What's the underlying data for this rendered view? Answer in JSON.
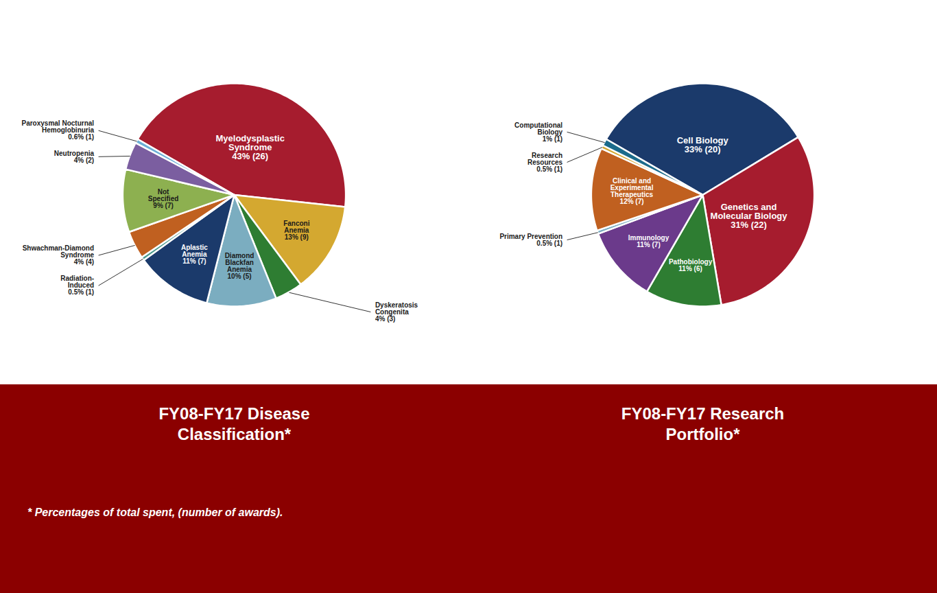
{
  "chart_data": [
    {
      "type": "pie",
      "title": "FY08-FY17 Disease\nClassification*",
      "categories": [
        "Myelodysplastic\nSyndrome\n43% (26)",
        "Fanconi\nAnemia\n13% (9)",
        "Dyskeratosis\nCongenita\n4% (3)",
        "Diamond\nBlackfan\nAnemia\n10% (5)",
        "Aplastic\nAnemia\n11% (7)",
        "Radiation-\nInduced\n0.5% (1)",
        "Shwachman-Diamond\nSyndrome\n4% (4)",
        "Not\nSpecified\n9% (7)",
        "Neutropenia\n4% (2)",
        "Paroxysmal Nocturnal\nHemoglobinuria\n0.6% (1)"
      ],
      "values": [
        43,
        13,
        4,
        10,
        11,
        0.5,
        4,
        9,
        4,
        0.6
      ],
      "colors": [
        "#A61C2E",
        "#D4A830",
        "#2E7D32",
        "#7BADC0",
        "#1B3A6B",
        "#4A9B8E",
        "#C06020",
        "#8DB050",
        "#7B5EA0",
        "#6BAED6"
      ]
    },
    {
      "type": "pie",
      "title": "FY08-FY17 Research\nPortfolio*",
      "categories": [
        "Cell Biology\n33% (20)",
        "Genetics and\nMolecular Biology\n31% (22)",
        "Pathobiology\n11% (6)",
        "Immunology\n11% (7)",
        "Primary Prevention\n0.5% (1)",
        "Clinical and\nExperimental\nTherapeutics\n12% (7)",
        "Research\nResources\n0.5% (1)",
        "Computational\nBiology\n1% (1)"
      ],
      "values": [
        33,
        31,
        11,
        11,
        0.5,
        12,
        0.5,
        1
      ],
      "colors": [
        "#1B3A6B",
        "#A61C2E",
        "#2E7D32",
        "#6B3A8B",
        "#7BADC0",
        "#C06020",
        "#D4A830",
        "#1B6B8B"
      ]
    }
  ],
  "footnote": "* Percentages of total spent, (number of awards)."
}
